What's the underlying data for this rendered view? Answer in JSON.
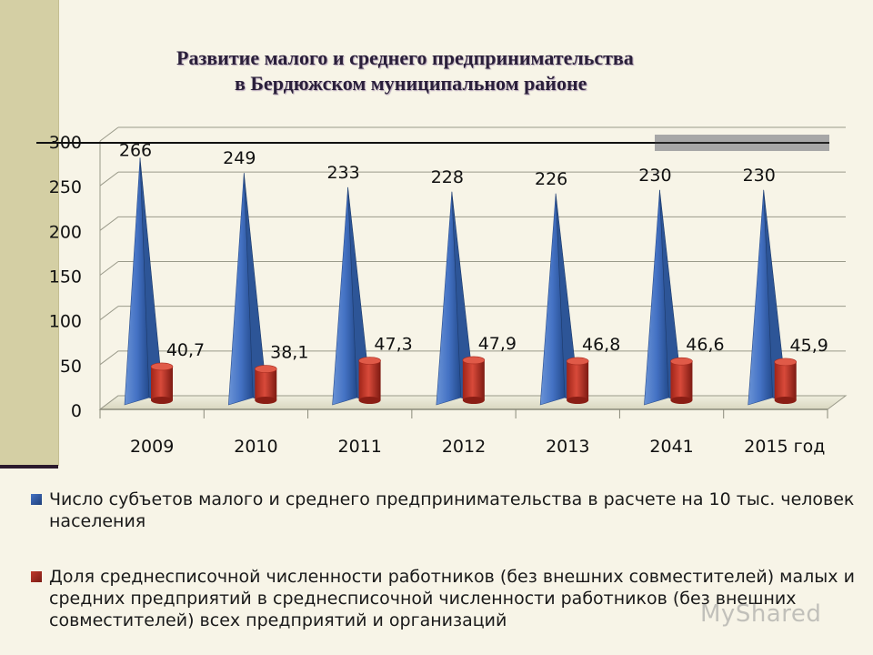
{
  "title": {
    "line1": "Развитие малого и среднего  предпринимательства",
    "line2": "в Бердюжском муниципальном районе"
  },
  "colors": {
    "series1": "#4472c4",
    "series2": "#c0392b",
    "background": "#f7f4e7",
    "sidebar": "#d4cfa4"
  },
  "chart_data": {
    "type": "bar",
    "categories": [
      "2009",
      "2010",
      "2011",
      "2012",
      "2013",
      "2041",
      "2015 год"
    ],
    "series": [
      {
        "name": "Число субъетов малого и среднего предпринимательства в расчете на 10 тыс. человек населения",
        "shape": "pyramid",
        "values": [
          266,
          249,
          233,
          228,
          226,
          230,
          230
        ],
        "labels": [
          "266",
          "249",
          "233",
          "228",
          "226",
          "230",
          "230"
        ]
      },
      {
        "name": "Доля среднесписочной численности работников (без внешних совместителей) малых и средних предприятий в среднесписочной численности работников (без внешних совместителей) всех предприятий и организаций",
        "shape": "cylinder",
        "values": [
          40.7,
          38.1,
          47.3,
          47.9,
          46.8,
          46.6,
          45.9
        ],
        "labels": [
          "40,7",
          "38,1",
          "47,3",
          "47,9",
          "46,8",
          "46,6",
          "45,9"
        ]
      }
    ],
    "y_ticks": [
      "0",
      "50",
      "100",
      "150",
      "200",
      "250",
      "300"
    ],
    "ylim": [
      0,
      300
    ],
    "grid": true,
    "legend_position": "bottom"
  },
  "watermark": "MyShared"
}
